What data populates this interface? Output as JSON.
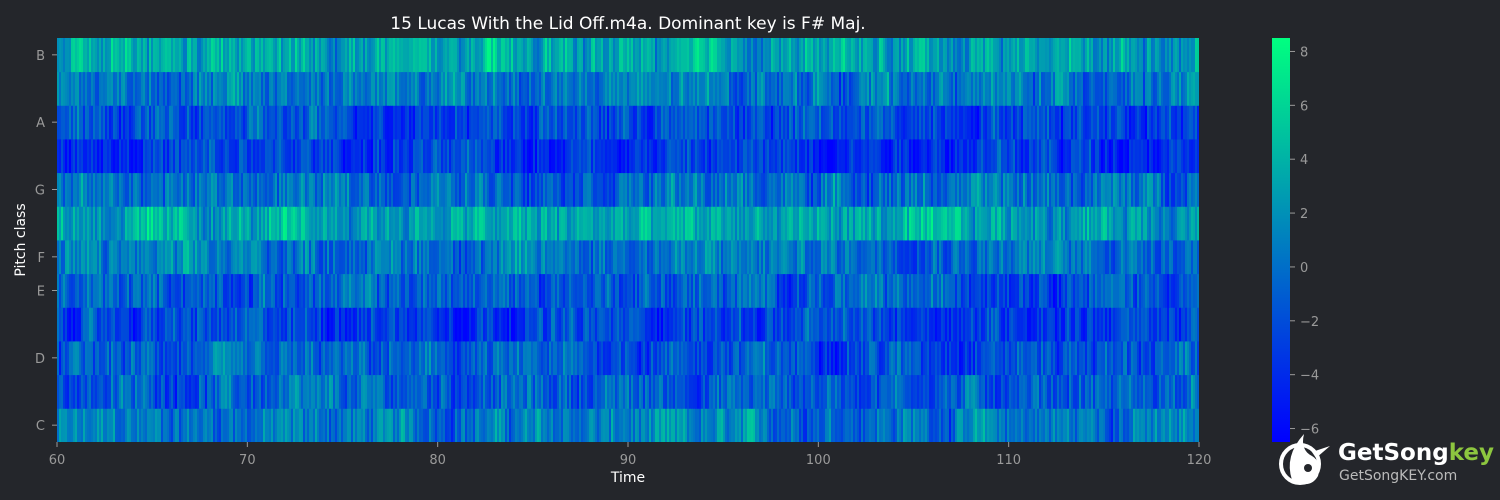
{
  "chart_data": {
    "type": "heatmap",
    "title": "15 Lucas With the Lid Off.m4a. Dominant key is F# Maj.",
    "xlabel": "Time",
    "ylabel": "Pitch class",
    "xlim": [
      60,
      120
    ],
    "x_ticks": [
      "60",
      "70",
      "80",
      "90",
      "100",
      "110",
      "120"
    ],
    "y_ticks": [
      "C",
      "D",
      "E",
      "F",
      "G",
      "A",
      "B"
    ],
    "pitch_classes": [
      "C",
      "C#",
      "D",
      "D#",
      "E",
      "F",
      "F#",
      "G",
      "G#",
      "A",
      "A#",
      "B"
    ],
    "colorbar": {
      "min": -6.5,
      "max": 8.5,
      "ticks": [
        "8",
        "6",
        "4",
        "2",
        "0",
        "−2",
        "−4",
        "−6"
      ],
      "colormap": [
        "#0000ff",
        "#00ff80"
      ]
    },
    "row_mean_levels": {
      "C": 0.5,
      "C#": -1.0,
      "D": -1.5,
      "D#": -2.5,
      "E": -1.0,
      "F": 0.5,
      "F#": 3.0,
      "G": 0.0,
      "G#": -3.0,
      "A": -2.0,
      "A#": 0.5,
      "B": 3.0
    }
  },
  "logo": {
    "brand_main": "GetSong",
    "brand_accent": "key",
    "url": "GetSongKEY.com",
    "icon": "bird-note-icon"
  },
  "colors": {
    "background": "#24262b",
    "text": "#ffffff",
    "tick": "#9a9a9a",
    "accent": "#8dc63f"
  }
}
